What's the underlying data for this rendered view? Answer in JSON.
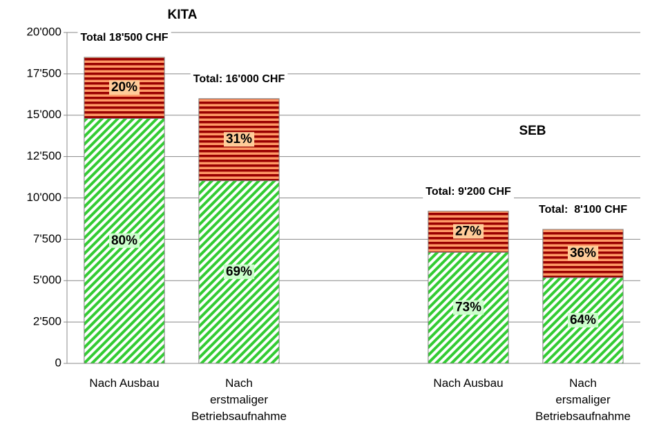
{
  "chart_data": {
    "type": "stacked_bar",
    "categories": [
      "Nach Ausbau",
      "Nach\nerstmaliger\nBetriebsaufnahme",
      null,
      "Nach Ausbau",
      "Nach\nersmaliger\nBetriebsaufnahme"
    ],
    "series": [
      {
        "color": "#33cc33",
        "stripe_color": "#ffffff",
        "pattern": "diagonal",
        "label_background": "#ccffcc",
        "values": [
          14800,
          11040,
          null,
          6716,
          5184
        ],
        "labels": [
          "80%",
          "69%",
          null,
          "73%",
          "64%"
        ]
      },
      {
        "color": "#990000",
        "stripe_color": "#ff9966",
        "pattern": "horizontal",
        "label_background": "#ffcc99",
        "values": [
          3700,
          4960,
          null,
          2484,
          2916
        ],
        "labels": [
          "20%",
          "31%",
          null,
          "27%",
          "36%"
        ]
      }
    ],
    "totals": [
      "Total 18'500 CHF",
      "Total: 16'000 CHF",
      null,
      "Total: 9'200 CHF",
      "Total:  8'100 CHF"
    ],
    "group_labels": [
      "KITA",
      "SEB"
    ],
    "ylim": [
      0,
      20000
    ],
    "yticks": [
      0,
      {
        "value": 2500,
        "label": "2'500"
      },
      {
        "value": 5000,
        "label": "5'000"
      },
      {
        "value": 7500,
        "label": "7'500"
      },
      {
        "value": 10000,
        "label": "10'000"
      },
      {
        "value": 12500,
        "label": "12'500"
      },
      {
        "value": 15000,
        "label": "15'000"
      },
      {
        "value": 17500,
        "label": "17'500"
      },
      {
        "value": 20000,
        "label": "20'000"
      }
    ],
    "grid": true
  }
}
